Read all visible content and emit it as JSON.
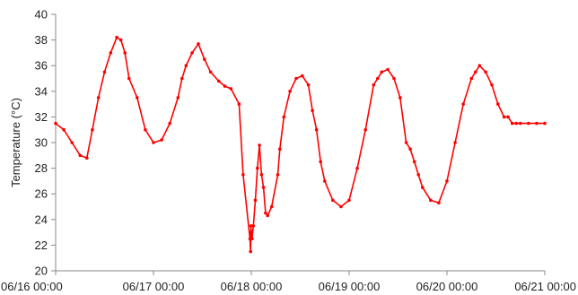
{
  "chart_data": {
    "type": "line",
    "ylabel": "Temperature (°C)",
    "xlabel": "",
    "ylim": [
      20,
      40
    ],
    "yticks": [
      20,
      22,
      24,
      26,
      28,
      30,
      32,
      34,
      36,
      38,
      40
    ],
    "xlim": [
      "06/16 00:00",
      "06/21 00:00"
    ],
    "xticks": [
      "06/16 00:00",
      "06/17 00:00",
      "06/18 00:00",
      "06/19 00:00",
      "06/20 00:00",
      "06/21 00:00"
    ],
    "grid": false,
    "legend": "none",
    "series_color": "#ff0000",
    "series": [
      {
        "x": [
          "06/16 00:00",
          "06/16 02:00",
          "06/16 04:00",
          "06/16 06:00",
          "06/16 07:40",
          "06/16 09:00",
          "06/16 10:30",
          "06/16 12:00",
          "06/16 13:30",
          "06/16 15:00",
          "06/16 16:00",
          "06/16 17:00",
          "06/16 18:00",
          "06/16 20:00",
          "06/16 22:00",
          "06/17 00:00",
          "06/17 02:00",
          "06/17 04:00",
          "06/17 06:00",
          "06/17 07:00",
          "06/17 08:00",
          "06/17 09:30",
          "06/17 11:00",
          "06/17 12:30",
          "06/17 14:00",
          "06/17 16:00",
          "06/17 17:30",
          "06/17 19:00",
          "06/17 21:00",
          "06/17 22:00",
          "06/17 23:40",
          "06/17 23:50",
          "06/17 23:55",
          "06/18 00:00",
          "06/18 00:10",
          "06/18 00:30",
          "06/18 01:00",
          "06/18 01:30",
          "06/18 02:00",
          "06/18 02:30",
          "06/18 03:00",
          "06/18 03:30",
          "06/18 04:00",
          "06/18 05:00",
          "06/18 06:30",
          "06/18 07:00",
          "06/18 08:00",
          "06/18 09:30",
          "06/18 11:00",
          "06/18 12:30",
          "06/18 14:00",
          "06/18 15:00",
          "06/18 16:00",
          "06/18 17:00",
          "06/18 18:00",
          "06/18 20:00",
          "06/18 22:00",
          "06/19 00:00",
          "06/19 02:00",
          "06/19 04:00",
          "06/19 06:00",
          "06/19 07:00",
          "06/19 08:00",
          "06/19 09:30",
          "06/19 11:00",
          "06/19 12:30",
          "06/19 14:00",
          "06/19 15:00",
          "06/19 16:00",
          "06/19 17:00",
          "06/19 18:00",
          "06/19 20:00",
          "06/19 22:00",
          "06/20 00:00",
          "06/20 02:00",
          "06/20 04:00",
          "06/20 06:00",
          "06/20 07:00",
          "06/20 08:00",
          "06/20 09:30",
          "06/20 11:00",
          "06/20 12:30",
          "06/20 14:00",
          "06/20 15:00",
          "06/20 16:00",
          "06/20 17:00",
          "06/20 18:00",
          "06/20 20:00",
          "06/20 22:00",
          "06/21 00:00"
        ],
        "y": [
          31.5,
          31.0,
          30.0,
          29.0,
          28.8,
          31.0,
          33.5,
          35.5,
          37.0,
          38.2,
          38.0,
          37.0,
          35.0,
          33.5,
          31.0,
          30.0,
          30.2,
          31.5,
          33.5,
          35.0,
          36.0,
          37.0,
          37.7,
          36.5,
          35.5,
          34.8,
          34.4,
          34.2,
          33.0,
          27.5,
          22.5,
          21.5,
          23.5,
          23.0,
          22.5,
          23.5,
          25.5,
          28.0,
          29.8,
          27.5,
          26.5,
          24.5,
          24.3,
          25.0,
          27.5,
          29.5,
          32.0,
          34.0,
          35.0,
          35.2,
          34.5,
          32.5,
          31.0,
          28.5,
          27.0,
          25.5,
          25.0,
          25.5,
          28.0,
          31.0,
          34.5,
          35.0,
          35.5,
          35.7,
          35.0,
          33.5,
          30.0,
          29.5,
          28.5,
          27.5,
          26.5,
          25.5,
          25.3,
          27.0,
          30.0,
          33.0,
          35.0,
          35.5,
          36.0,
          35.5,
          34.5,
          33.0,
          32.0,
          32.0,
          31.5,
          31.5,
          31.5,
          31.5,
          31.5,
          31.5
        ]
      }
    ]
  }
}
